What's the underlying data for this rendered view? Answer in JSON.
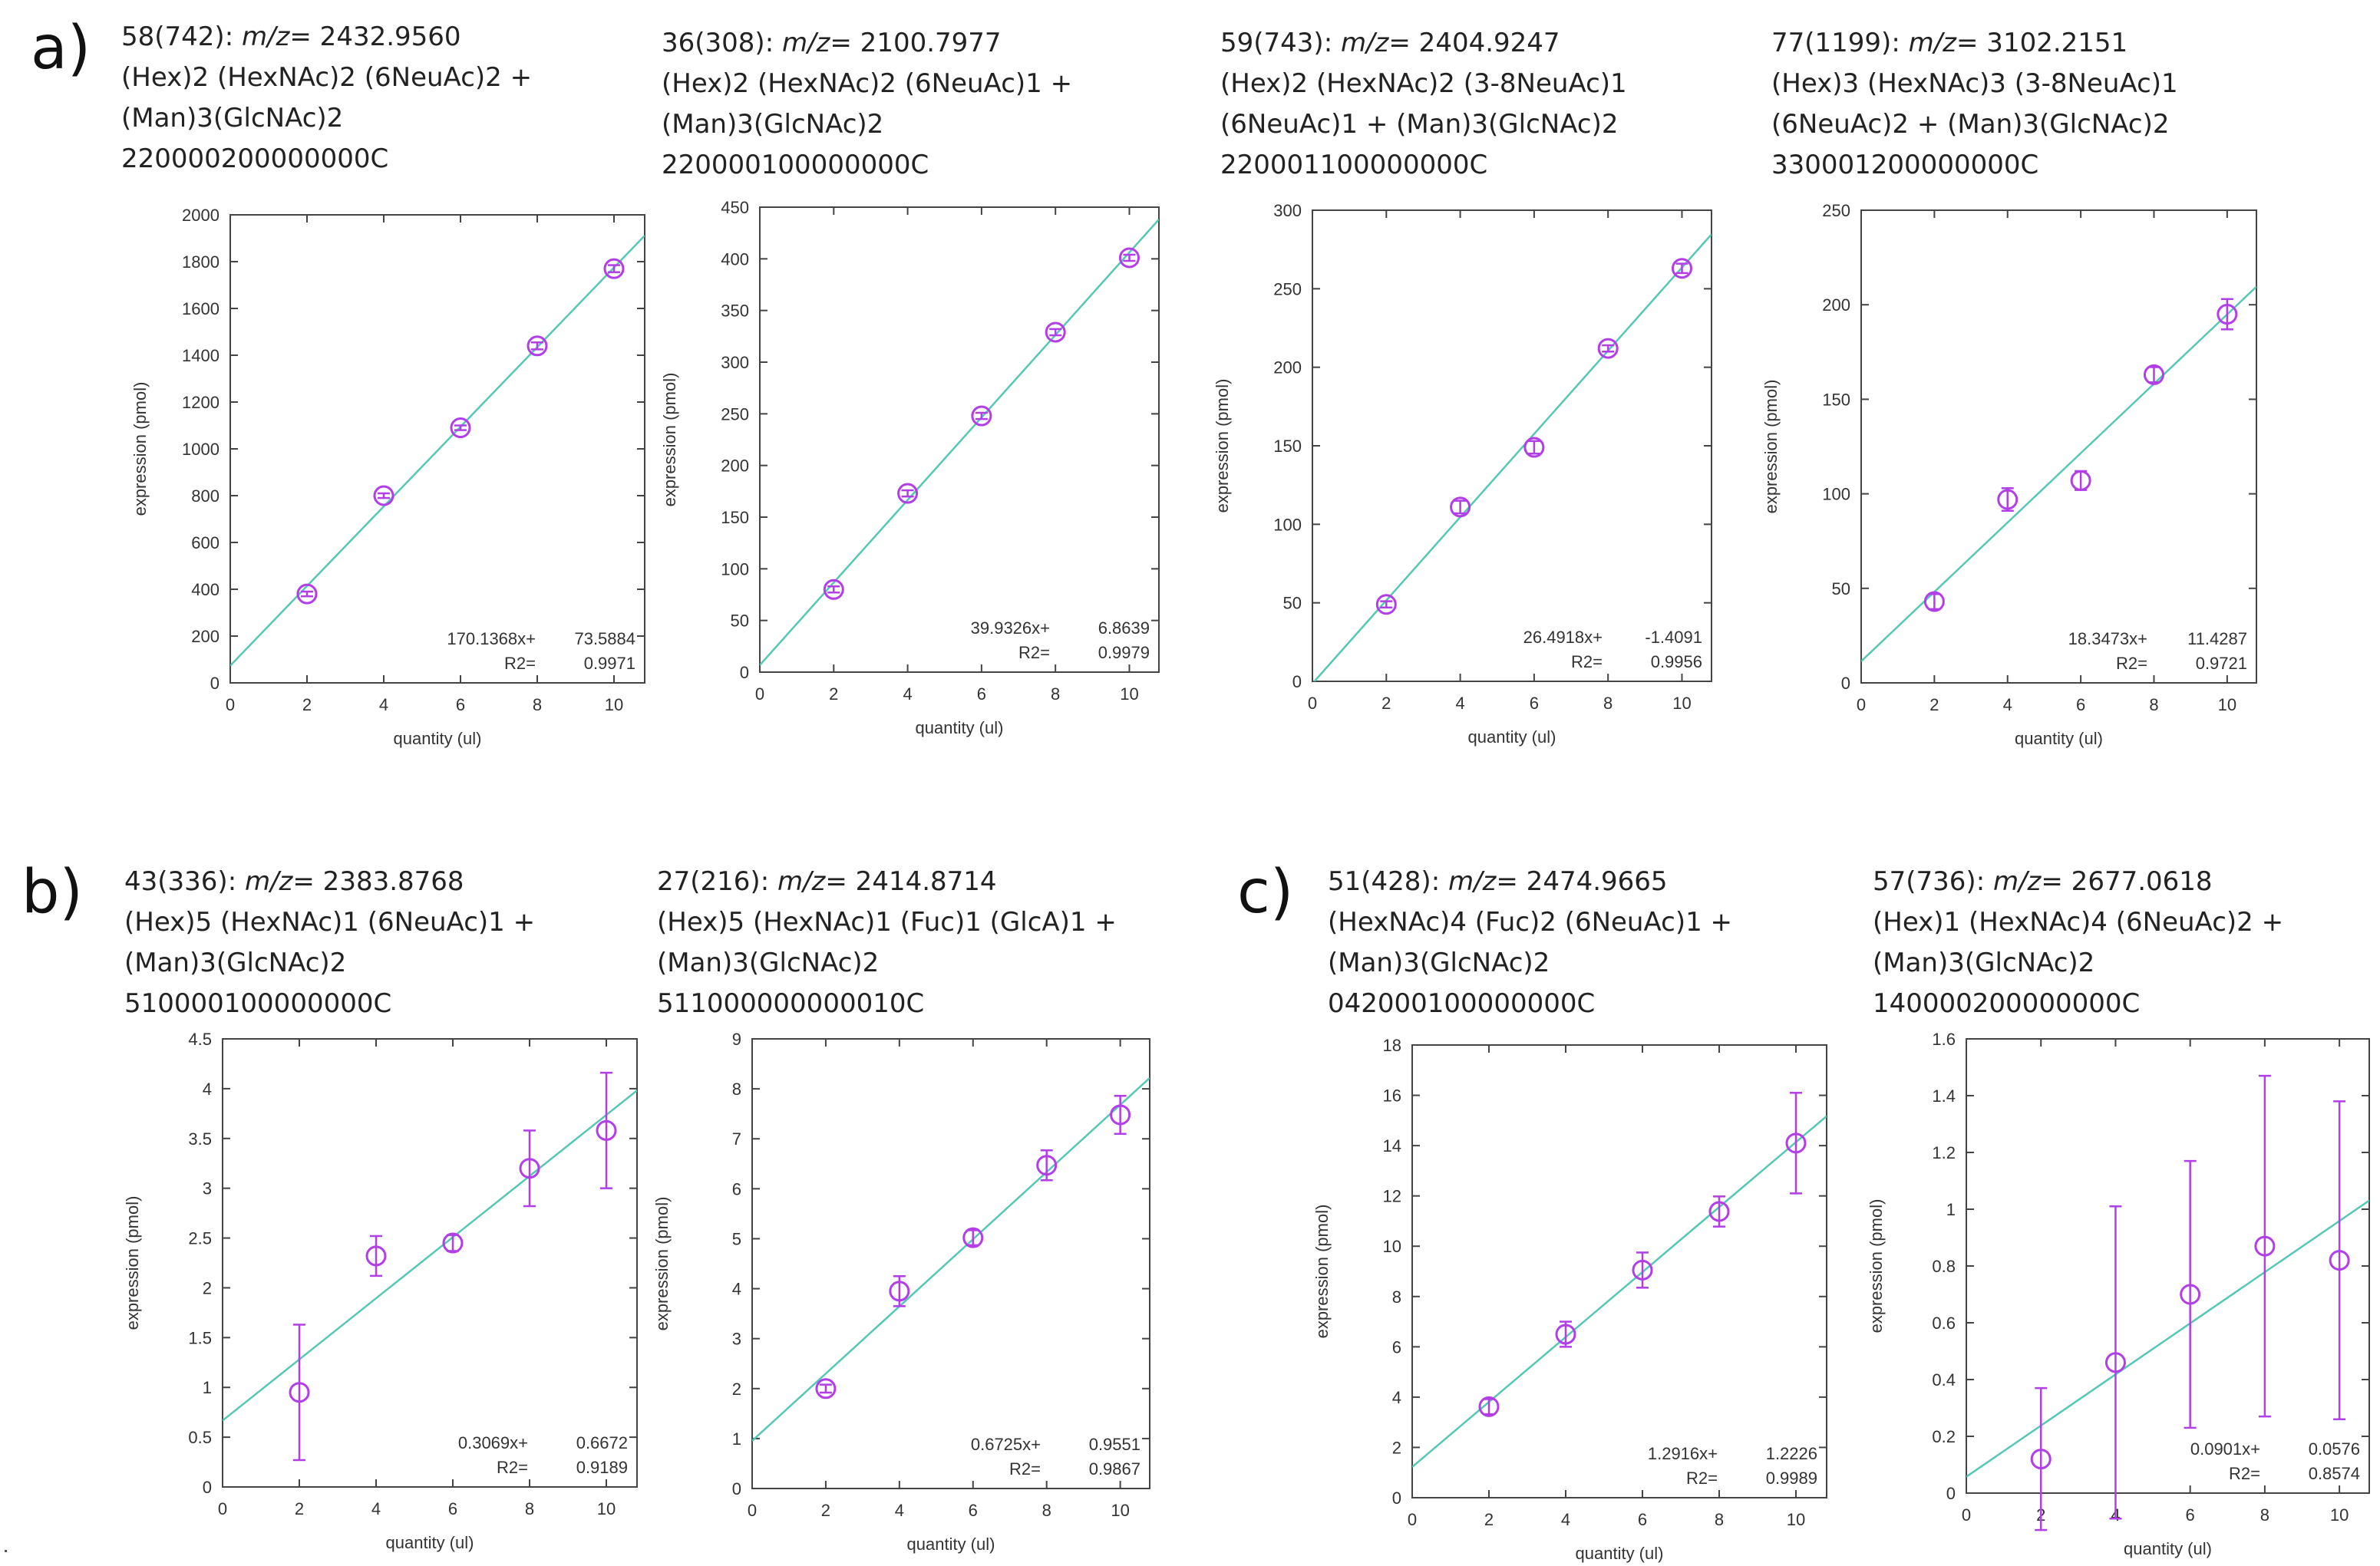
{
  "panel_labels": {
    "a": "a)",
    "b": "b)",
    "c": "c)"
  },
  "colors": {
    "fit_line": "#57c7b5",
    "marker": "#b23ee8",
    "axis": "#444444",
    "text": "#333333"
  },
  "chart_data": [
    {
      "type": "scatter",
      "panel": "a",
      "header": {
        "id": "58(742):",
        "mz_label": "m/z",
        "mz_value": "= 2432.9560",
        "line2": "(Hex)2 (HexNAc)2 (6NeuAc)2 +",
        "line3": "(Man)3(GlcNAc)2",
        "line4": "220000200000000C"
      },
      "xlabel": "quantity (ul)",
      "ylabel": "expression (pmol)",
      "xlim": [
        0,
        10.8
      ],
      "ylim": [
        0,
        2000
      ],
      "xticks": [
        "0",
        "2",
        "4",
        "6",
        "8",
        "10"
      ],
      "yticks": [
        "0",
        "200",
        "400",
        "600",
        "800",
        "1000",
        "1200",
        "1400",
        "1600",
        "1800",
        "2000"
      ],
      "x": [
        2,
        4,
        6,
        8,
        10
      ],
      "y": [
        380,
        800,
        1090,
        1440,
        1770
      ],
      "err": [
        10,
        10,
        10,
        15,
        15
      ],
      "fit": {
        "slope": 170.1368,
        "intercept": 73.5884
      },
      "eq_text": "170.1368x+",
      "eq_intercept_text": "73.5884",
      "r2_label": "R2=",
      "r2_value": "0.9971"
    },
    {
      "type": "scatter",
      "panel": "a",
      "header": {
        "id": "36(308):",
        "mz_label": "m/z",
        "mz_value": "= 2100.7977",
        "line2": "(Hex)2 (HexNAc)2 (6NeuAc)1 +",
        "line3": "(Man)3(GlcNAc)2",
        "line4": "220000100000000C"
      },
      "xlabel": "quantity (ul)",
      "ylabel": "expression (pmol)",
      "xlim": [
        0,
        10.8
      ],
      "ylim": [
        0,
        450
      ],
      "xticks": [
        "0",
        "2",
        "4",
        "6",
        "8",
        "10"
      ],
      "yticks": [
        "0",
        "50",
        "100",
        "150",
        "200",
        "250",
        "300",
        "350",
        "400",
        "450"
      ],
      "x": [
        2,
        4,
        6,
        8,
        10
      ],
      "y": [
        80,
        173,
        248,
        329,
        401
      ],
      "err": [
        3,
        3,
        3,
        3,
        3
      ],
      "fit": {
        "slope": 39.9326,
        "intercept": 6.8639
      },
      "eq_text": "39.9326x+",
      "eq_intercept_text": "6.8639",
      "r2_label": "R2=",
      "r2_value": "0.9979"
    },
    {
      "type": "scatter",
      "panel": "a",
      "header": {
        "id": "59(743):",
        "mz_label": "m/z",
        "mz_value": "= 2404.9247",
        "line2": "(Hex)2 (HexNAc)2 (3-8NeuAc)1",
        "line3": "(6NeuAc)1 + (Man)3(GlcNAc)2",
        "line4": "220001100000000C"
      },
      "xlabel": "quantity (ul)",
      "ylabel": "expression (pmol)",
      "xlim": [
        0,
        10.8
      ],
      "ylim": [
        0,
        300
      ],
      "xticks": [
        "0",
        "2",
        "4",
        "6",
        "8",
        "10"
      ],
      "yticks": [
        "0",
        "50",
        "100",
        "150",
        "200",
        "250",
        "300"
      ],
      "x": [
        2,
        4,
        6,
        8,
        10
      ],
      "y": [
        49,
        111,
        149,
        212,
        263
      ],
      "err": [
        2,
        4,
        4,
        2,
        3
      ],
      "fit": {
        "slope": 26.4918,
        "intercept": -1.4091
      },
      "eq_text": "26.4918x+",
      "eq_intercept_text": "-1.4091",
      "r2_label": "R2=",
      "r2_value": "0.9956"
    },
    {
      "type": "scatter",
      "panel": "a",
      "header": {
        "id": "77(1199):",
        "mz_label": "m/z",
        "mz_value": "= 3102.2151",
        "line2": "(Hex)3 (HexNAc)3 (3-8NeuAc)1",
        "line3": "(6NeuAc)2 + (Man)3(GlcNAc)2",
        "line4": "330001200000000C"
      },
      "xlabel": "quantity (ul)",
      "ylabel": "expression (pmol)",
      "xlim": [
        0,
        10.8
      ],
      "ylim": [
        0,
        250
      ],
      "xticks": [
        "0",
        "2",
        "4",
        "6",
        "8",
        "10"
      ],
      "yticks": [
        "0",
        "50",
        "100",
        "150",
        "200",
        "250"
      ],
      "x": [
        2,
        4,
        6,
        8,
        10
      ],
      "y": [
        43,
        97,
        107,
        163,
        195
      ],
      "err": [
        4,
        6,
        5,
        4,
        8
      ],
      "fit": {
        "slope": 18.3473,
        "intercept": 11.4287
      },
      "eq_text": "18.3473x+",
      "eq_intercept_text": "11.4287",
      "r2_label": "R2=",
      "r2_value": "0.9721"
    },
    {
      "type": "scatter",
      "panel": "b",
      "header": {
        "id": "43(336):",
        "mz_label": "m/z",
        "mz_value": "= 2383.8768",
        "line2": "(Hex)5 (HexNAc)1 (6NeuAc)1 +",
        "line3": "(Man)3(GlcNAc)2",
        "line4": "510000100000000C"
      },
      "xlabel": "quantity (ul)",
      "ylabel": "expression (pmol)",
      "xlim": [
        0,
        10.8
      ],
      "ylim": [
        0,
        4.5
      ],
      "xticks": [
        "0",
        "2",
        "4",
        "6",
        "8",
        "10"
      ],
      "yticks": [
        "0",
        "0.5",
        "1",
        "1.5",
        "2",
        "2.5",
        "3",
        "3.5",
        "4",
        "4.5"
      ],
      "x": [
        2,
        4,
        6,
        8,
        10
      ],
      "y": [
        0.95,
        2.32,
        2.45,
        3.2,
        3.58
      ],
      "err": [
        0.68,
        0.2,
        0.08,
        0.38,
        0.58
      ],
      "fit": {
        "slope": 0.3069,
        "intercept": 0.6672
      },
      "eq_text": "0.3069x+",
      "eq_intercept_text": "0.6672",
      "r2_label": "R2=",
      "r2_value": "0.9189"
    },
    {
      "type": "scatter",
      "panel": "b",
      "header": {
        "id": "27(216):",
        "mz_label": "m/z",
        "mz_value": "= 2414.8714",
        "line2": "(Hex)5 (HexNAc)1 (Fuc)1 (GlcA)1 +",
        "line3": "(Man)3(GlcNAc)2",
        "line4": "511000000000010C"
      },
      "xlabel": "quantity (ul)",
      "ylabel": "expression (pmol)",
      "xlim": [
        0,
        10.8
      ],
      "ylim": [
        0,
        9
      ],
      "xticks": [
        "0",
        "2",
        "4",
        "6",
        "8",
        "10"
      ],
      "yticks": [
        "0",
        "1",
        "2",
        "3",
        "4",
        "5",
        "6",
        "7",
        "8",
        "9"
      ],
      "x": [
        2,
        4,
        6,
        8,
        10
      ],
      "y": [
        2.0,
        3.95,
        5.02,
        6.47,
        7.48
      ],
      "err": [
        0.08,
        0.3,
        0.15,
        0.3,
        0.38
      ],
      "fit": {
        "slope": 0.6725,
        "intercept": 0.9551
      },
      "eq_text": "0.6725x+",
      "eq_intercept_text": "0.9551",
      "r2_label": "R2=",
      "r2_value": "0.9867"
    },
    {
      "type": "scatter",
      "panel": "c",
      "header": {
        "id": "51(428):",
        "mz_label": "m/z",
        "mz_value": "= 2474.9665",
        "line2": "(HexNAc)4 (Fuc)2 (6NeuAc)1 +",
        "line3": "(Man)3(GlcNAc)2",
        "line4": "042000100000000C"
      },
      "xlabel": "quantity (ul)",
      "ylabel": "expression (pmol)",
      "xlim": [
        0,
        10.8
      ],
      "ylim": [
        0,
        18
      ],
      "xticks": [
        "0",
        "2",
        "4",
        "6",
        "8",
        "10"
      ],
      "yticks": [
        "0",
        "2",
        "4",
        "6",
        "8",
        "10",
        "12",
        "14",
        "16",
        "18"
      ],
      "x": [
        2,
        4,
        6,
        8,
        10
      ],
      "y": [
        3.62,
        6.5,
        9.05,
        11.38,
        14.1
      ],
      "err": [
        0.3,
        0.5,
        0.7,
        0.6,
        2.0
      ],
      "fit": {
        "slope": 1.2916,
        "intercept": 1.2226
      },
      "eq_text": "1.2916x+",
      "eq_intercept_text": "1.2226",
      "r2_label": "R2=",
      "r2_value": "0.9989"
    },
    {
      "type": "scatter",
      "panel": "c",
      "header": {
        "id": "57(736):",
        "mz_label": "m/z",
        "mz_value": "= 2677.0618",
        "line2": "(Hex)1 (HexNAc)4 (6NeuAc)2 +",
        "line3": "(Man)3(GlcNAc)2",
        "line4": "140000200000000C"
      },
      "xlabel": "quantity (ul)",
      "ylabel": "expression (pmol)",
      "xlim": [
        0,
        10.8
      ],
      "ylim": [
        0,
        1.6
      ],
      "xticks": [
        "0",
        "2",
        "4",
        "6",
        "8",
        "10"
      ],
      "yticks": [
        "0",
        "0.2",
        "0.4",
        "0.6",
        "0.8",
        "1",
        "1.2",
        "1.4",
        "1.6"
      ],
      "x": [
        2,
        4,
        6,
        8,
        10
      ],
      "y": [
        0.12,
        0.46,
        0.7,
        0.87,
        0.82
      ],
      "err": [
        0.25,
        0.55,
        0.47,
        0.6,
        0.56
      ],
      "fit": {
        "slope": 0.0901,
        "intercept": 0.0576
      },
      "eq_text": "0.0901x+",
      "eq_intercept_text": "0.0576",
      "r2_label": "R2=",
      "r2_value": "0.8574"
    }
  ]
}
